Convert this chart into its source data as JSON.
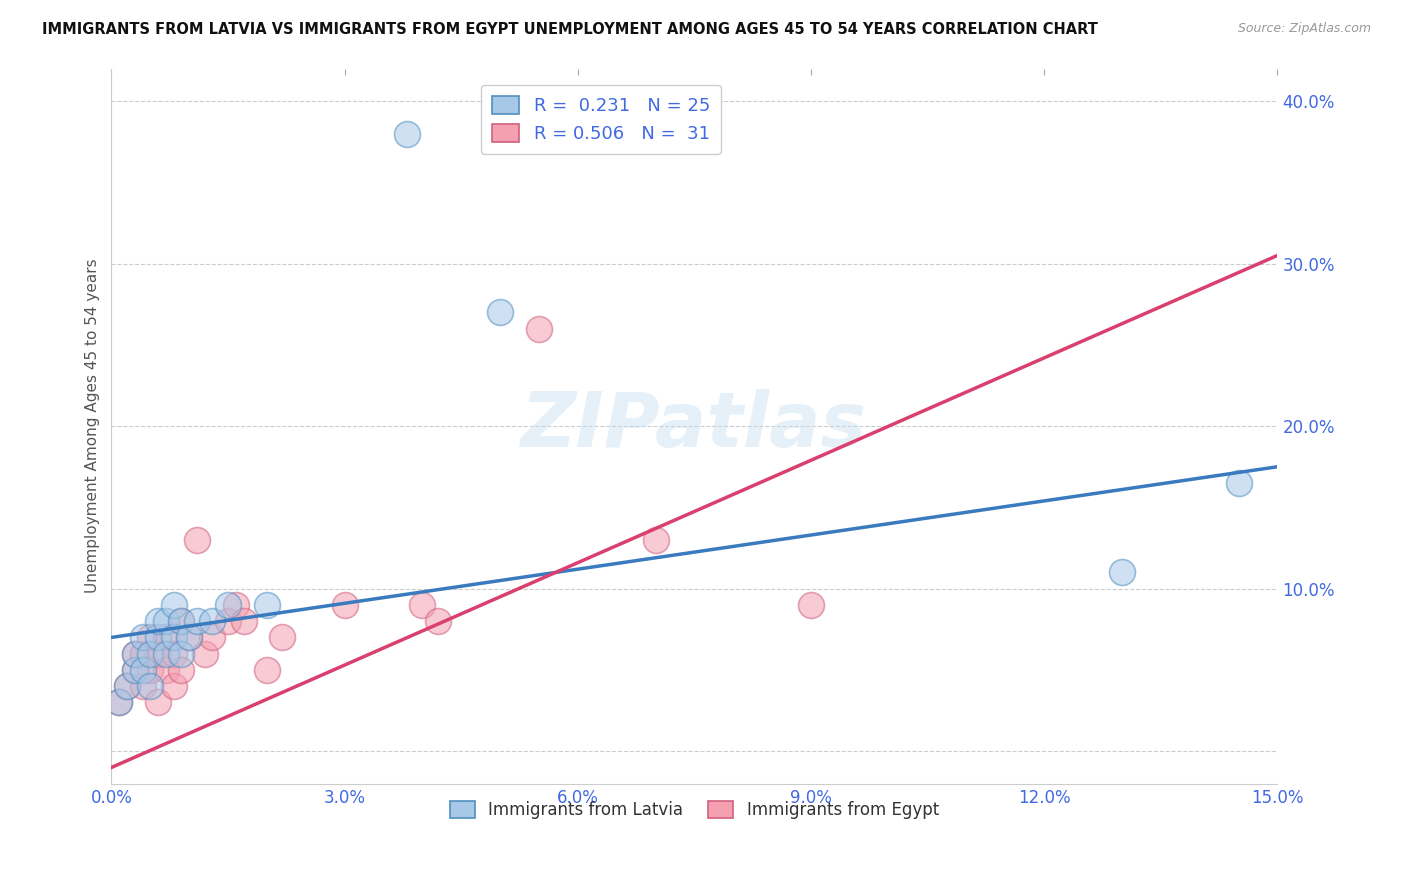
{
  "title": "IMMIGRANTS FROM LATVIA VS IMMIGRANTS FROM EGYPT UNEMPLOYMENT AMONG AGES 45 TO 54 YEARS CORRELATION CHART",
  "source": "Source: ZipAtlas.com",
  "ylabel": "Unemployment Among Ages 45 to 54 years",
  "xlim": [
    0.0,
    0.15
  ],
  "ylim": [
    -0.02,
    0.42
  ],
  "xticks": [
    0.0,
    0.03,
    0.06,
    0.09,
    0.12,
    0.15
  ],
  "yticks": [
    0.0,
    0.1,
    0.2,
    0.3,
    0.4
  ],
  "ytick_labels": [
    "",
    "10.0%",
    "20.0%",
    "30.0%",
    "40.0%"
  ],
  "xtick_labels": [
    "0.0%",
    "3.0%",
    "6.0%",
    "9.0%",
    "12.0%",
    "15.0%"
  ],
  "latvia_color": "#a8c8e8",
  "egypt_color": "#f4a0b0",
  "line_latvia_color": "#3a7abf",
  "line_egypt_color": "#d94070",
  "legend_text_color": "#4169e1",
  "axis_text_color": "#4169e1",
  "latvia_R": 0.231,
  "latvia_N": 25,
  "egypt_R": 0.506,
  "egypt_N": 31,
  "watermark": "ZIPatlas",
  "latvia_x": [
    0.001,
    0.002,
    0.003,
    0.003,
    0.004,
    0.004,
    0.005,
    0.005,
    0.006,
    0.006,
    0.007,
    0.007,
    0.008,
    0.008,
    0.009,
    0.009,
    0.01,
    0.011,
    0.013,
    0.015,
    0.02,
    0.038,
    0.05,
    0.13,
    0.145
  ],
  "latvia_y": [
    0.03,
    0.04,
    0.05,
    0.06,
    0.05,
    0.07,
    0.04,
    0.06,
    0.07,
    0.08,
    0.06,
    0.08,
    0.07,
    0.09,
    0.06,
    0.08,
    0.07,
    0.08,
    0.08,
    0.09,
    0.09,
    0.38,
    0.27,
    0.11,
    0.165
  ],
  "egypt_x": [
    0.001,
    0.002,
    0.003,
    0.003,
    0.004,
    0.004,
    0.005,
    0.005,
    0.006,
    0.006,
    0.007,
    0.007,
    0.008,
    0.008,
    0.009,
    0.009,
    0.01,
    0.011,
    0.012,
    0.013,
    0.015,
    0.016,
    0.017,
    0.02,
    0.022,
    0.03,
    0.04,
    0.042,
    0.055,
    0.07,
    0.09
  ],
  "egypt_y": [
    0.03,
    0.04,
    0.05,
    0.06,
    0.04,
    0.06,
    0.05,
    0.07,
    0.03,
    0.06,
    0.05,
    0.07,
    0.04,
    0.06,
    0.05,
    0.08,
    0.07,
    0.13,
    0.06,
    0.07,
    0.08,
    0.09,
    0.08,
    0.05,
    0.07,
    0.09,
    0.09,
    0.08,
    0.26,
    0.13,
    0.09
  ],
  "lv_line_x0": 0.0,
  "lv_line_y0": 0.07,
  "lv_line_x1": 0.15,
  "lv_line_y1": 0.175,
  "eg_line_x0": 0.0,
  "eg_line_y0": -0.01,
  "eg_line_x1": 0.15,
  "eg_line_y1": 0.305
}
